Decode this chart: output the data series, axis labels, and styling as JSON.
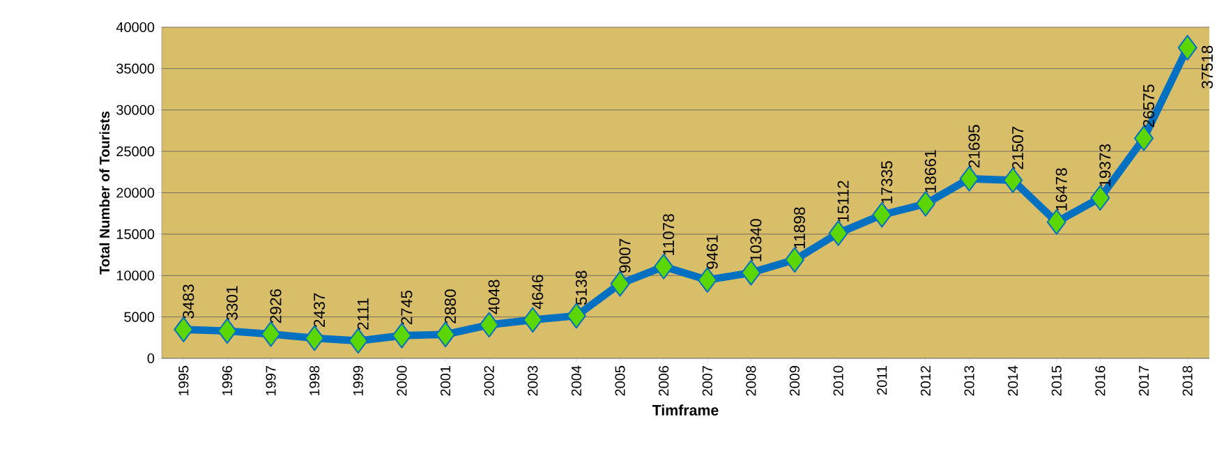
{
  "chart_data": {
    "type": "line",
    "xlabel": "Timframe",
    "ylabel": "Total Number of Tourists",
    "categories": [
      "1995",
      "1996",
      "1997",
      "1998",
      "1999",
      "2000",
      "2001",
      "2002",
      "2003",
      "2004",
      "2005",
      "2006",
      "2007",
      "2008",
      "2009",
      "2010",
      "2011",
      "2012",
      "2013",
      "2014",
      "2015",
      "2016",
      "2017",
      "2018"
    ],
    "series": [
      {
        "color": "#0070c0",
        "values": [
          3483,
          3301,
          2926,
          2437,
          2111,
          2745,
          2880,
          4048,
          4646,
          5138,
          9007,
          11078,
          9461,
          10340,
          11898,
          15112,
          17335,
          18661,
          21695,
          21507,
          16478,
          19373,
          26575,
          37518
        ]
      }
    ],
    "ylim": [
      0,
      40000
    ],
    "yticks": [
      0,
      5000,
      10000,
      15000,
      20000,
      25000,
      30000,
      35000,
      40000
    ],
    "grid": "y",
    "marker": "diamond",
    "line_style": "solid",
    "data_labels": true
  }
}
